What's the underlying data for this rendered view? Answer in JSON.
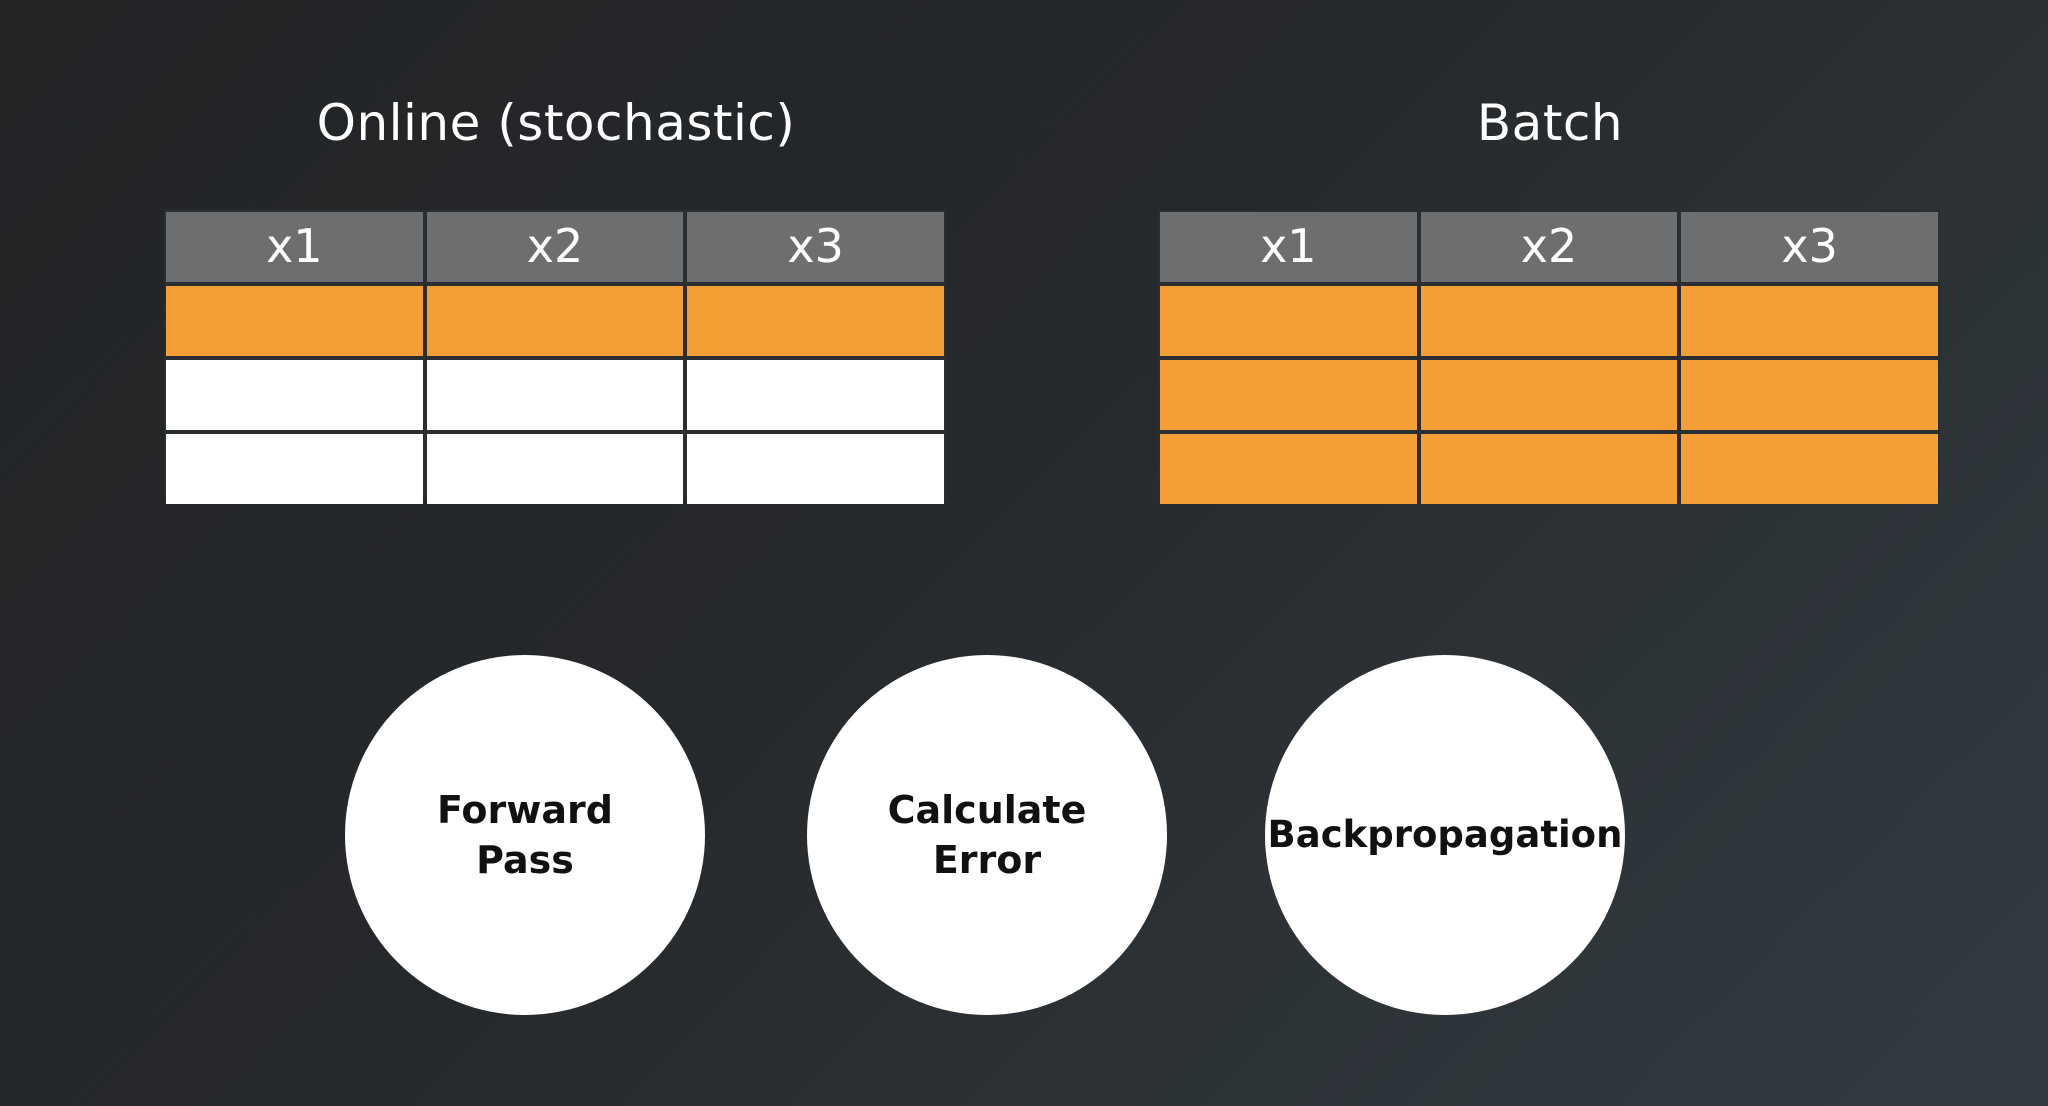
{
  "online": {
    "title": "Online (stochastic)",
    "headers": [
      "x1",
      "x2",
      "x3"
    ],
    "rows": [
      "orange",
      "white",
      "white"
    ]
  },
  "batch": {
    "title": "Batch",
    "headers": [
      "x1",
      "x2",
      "x3"
    ],
    "rows": [
      "orange",
      "orange",
      "orange"
    ]
  },
  "steps": [
    {
      "label": "Forward\nPass"
    },
    {
      "label": "Calculate\nError"
    },
    {
      "label": "Backpropagation"
    }
  ],
  "colors": {
    "selected_row": "#f49f36",
    "unselected_row": "#ffffff",
    "header": "#6c6e70",
    "background": "#24272a"
  }
}
